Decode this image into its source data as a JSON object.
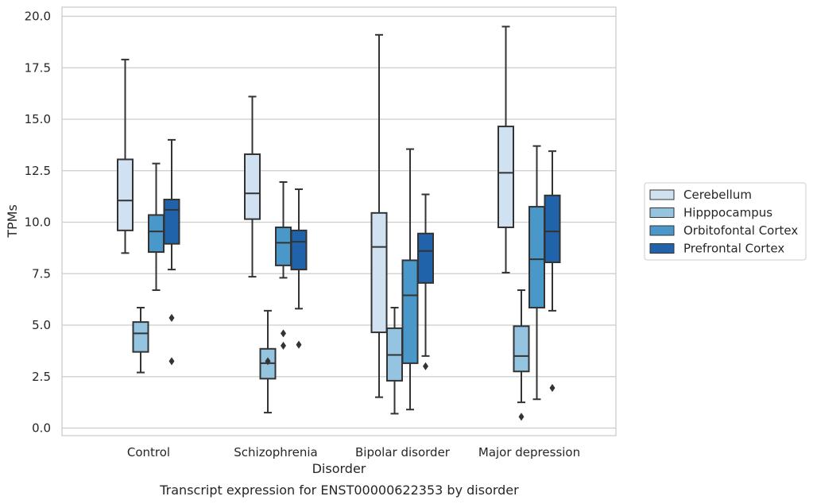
{
  "chart_data": {
    "type": "box",
    "xlabel": "Disorder",
    "ylabel": "TPMs",
    "caption": "Transcript expression for ENST00000622353 by disorder",
    "ylim": [
      -0.4,
      20.5
    ],
    "yticks": [
      "0.0",
      "2.5",
      "5.0",
      "7.5",
      "10.0",
      "12.5",
      "15.0",
      "17.5",
      "20.0"
    ],
    "grid": "horizontal",
    "legend_position": "right",
    "categories": [
      "Control",
      "Schizophrenia",
      "Bipolar disorder",
      "Major depression"
    ],
    "series": [
      {
        "name": "Cerebellum",
        "color": "#d0e1f2",
        "boxes": [
          {
            "whislo": 8.5,
            "q1": 9.6,
            "med": 11.05,
            "q3": 13.05,
            "whishi": 17.9,
            "fliers": []
          },
          {
            "whislo": 7.35,
            "q1": 10.15,
            "med": 11.4,
            "q3": 13.3,
            "whishi": 16.1,
            "fliers": []
          },
          {
            "whislo": 1.5,
            "q1": 4.65,
            "med": 8.8,
            "q3": 10.45,
            "whishi": 19.1,
            "fliers": []
          },
          {
            "whislo": 7.55,
            "q1": 9.75,
            "med": 12.4,
            "q3": 14.65,
            "whishi": 19.5,
            "fliers": []
          }
        ]
      },
      {
        "name": "Hipppocampus",
        "color": "#94c4df",
        "boxes": [
          {
            "whislo": 2.7,
            "q1": 3.7,
            "med": 4.6,
            "q3": 5.15,
            "whishi": 5.85,
            "fliers": []
          },
          {
            "whislo": 0.75,
            "q1": 2.4,
            "med": 3.15,
            "q3": 3.85,
            "whishi": 5.7,
            "fliers": [
              3.25
            ]
          },
          {
            "whislo": 0.7,
            "q1": 2.3,
            "med": 3.55,
            "q3": 4.85,
            "whishi": 5.85,
            "fliers": []
          },
          {
            "whislo": 1.25,
            "q1": 2.75,
            "med": 3.5,
            "q3": 4.95,
            "whishi": 6.7,
            "fliers": [
              0.55
            ]
          }
        ]
      },
      {
        "name": "Orbitofontal Cortex",
        "color": "#4a98c9",
        "boxes": [
          {
            "whislo": 6.7,
            "q1": 8.55,
            "med": 9.55,
            "q3": 10.35,
            "whishi": 12.85,
            "fliers": []
          },
          {
            "whislo": 7.3,
            "q1": 7.9,
            "med": 9.0,
            "q3": 9.75,
            "whishi": 11.95,
            "fliers": [
              4.6,
              4.0
            ]
          },
          {
            "whislo": 0.9,
            "q1": 3.15,
            "med": 6.45,
            "q3": 8.15,
            "whishi": 13.55,
            "fliers": []
          },
          {
            "whislo": 1.4,
            "q1": 5.85,
            "med": 8.2,
            "q3": 10.75,
            "whishi": 13.7,
            "fliers": []
          }
        ]
      },
      {
        "name": "Prefrontal Cortex",
        "color": "#2163aa",
        "boxes": [
          {
            "whislo": 7.7,
            "q1": 8.95,
            "med": 10.6,
            "q3": 11.1,
            "whishi": 14.0,
            "fliers": [
              5.35,
              3.25
            ]
          },
          {
            "whislo": 5.8,
            "q1": 7.7,
            "med": 9.05,
            "q3": 9.6,
            "whishi": 11.6,
            "fliers": [
              4.05
            ]
          },
          {
            "whislo": 3.5,
            "q1": 7.05,
            "med": 8.6,
            "q3": 9.45,
            "whishi": 11.35,
            "fliers": [
              3.0
            ]
          },
          {
            "whislo": 5.7,
            "q1": 8.05,
            "med": 9.55,
            "q3": 11.3,
            "whishi": 13.45,
            "fliers": [
              1.95
            ]
          }
        ]
      }
    ]
  }
}
